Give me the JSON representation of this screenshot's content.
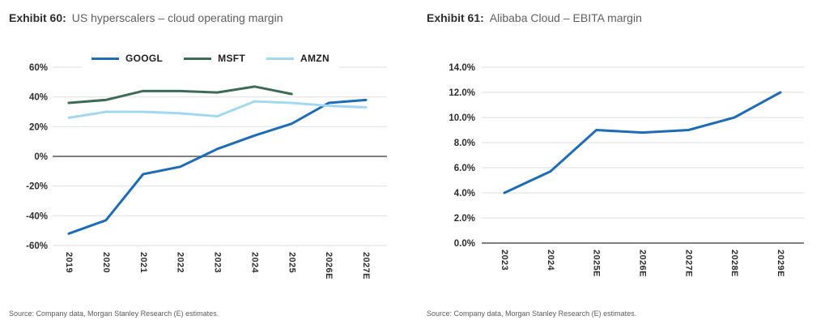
{
  "exhibit60": {
    "label": "Exhibit 60:",
    "title": "US hyperscalers – cloud operating margin",
    "source": "Source: Company data, Morgan Stanley Research (E) estimates."
  },
  "exhibit61": {
    "label": "Exhibit 61:",
    "title": "Alibaba Cloud – EBITA margin",
    "source": "Source: Company data, Morgan Stanley Research (E) estimates."
  },
  "chart_data": [
    {
      "type": "line",
      "title": "US hyperscalers – cloud operating margin",
      "categories": [
        "2019",
        "2020",
        "2021",
        "2022",
        "2023",
        "2024",
        "2025",
        "2026E",
        "2027E"
      ],
      "series": [
        {
          "name": "GOOGL",
          "color": "#1E6CB6",
          "values": [
            -52,
            -43,
            -12,
            -7,
            5,
            14,
            22,
            36,
            38
          ]
        },
        {
          "name": "MSFT",
          "color": "#3D6C55",
          "values": [
            36,
            38,
            44,
            44,
            43,
            47,
            42,
            null,
            null
          ]
        },
        {
          "name": "AMZN",
          "color": "#A2D8F0",
          "values": [
            26,
            30,
            30,
            29,
            27,
            37,
            36,
            34,
            33
          ]
        }
      ],
      "ylim": [
        -60,
        60
      ],
      "yticks": [
        60,
        40,
        20,
        0,
        -20,
        -40,
        -60
      ],
      "ytick_labels": [
        "60%",
        "40%",
        "20%",
        "0%",
        "-20%",
        "-40%",
        "-60%"
      ],
      "zero_line": 0,
      "xlabel": "",
      "ylabel": "",
      "grid": true,
      "legend_position": "top",
      "x_label_rotation": 90
    },
    {
      "type": "line",
      "title": "Alibaba Cloud – EBITA margin",
      "categories": [
        "2023",
        "2024",
        "2025E",
        "2026E",
        "2027E",
        "2028E",
        "2029E"
      ],
      "series": [
        {
          "name": "Alibaba Cloud EBITA margin",
          "color": "#1E6CB6",
          "values": [
            4.0,
            5.7,
            9.0,
            8.8,
            9.0,
            10.0,
            12.0
          ]
        }
      ],
      "ylim": [
        0,
        14
      ],
      "yticks": [
        14,
        12,
        10,
        8,
        6,
        4,
        2,
        0
      ],
      "ytick_labels": [
        "14.0%",
        "12.0%",
        "10.0%",
        "8.0%",
        "6.0%",
        "4.0%",
        "2.0%",
        "0.0%"
      ],
      "zero_line": 0,
      "xlabel": "",
      "ylabel": "",
      "grid": true,
      "legend_position": "none",
      "x_label_rotation": 90
    }
  ],
  "colors": {
    "gridline": "#E4E4E4",
    "zero_line": "#7F7F7F",
    "tick_text": "#2D2D2D",
    "title_gray": "#5D6062",
    "background": "#FFFFFF"
  }
}
